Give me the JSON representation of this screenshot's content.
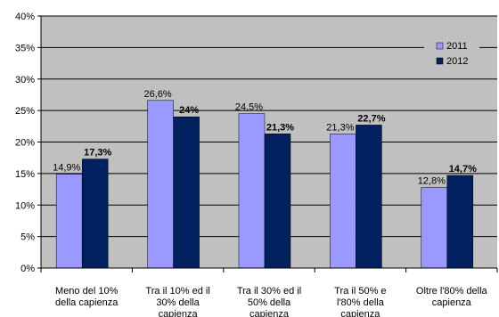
{
  "chart_data": {
    "type": "bar",
    "categories": [
      [
        "Meno del 10%",
        "della capienza"
      ],
      [
        "Tra il 10% ed il",
        "30% della",
        "capienza"
      ],
      [
        "Tra il 30% ed il",
        "50% della",
        "capienza"
      ],
      [
        "Tra il 50% e",
        "l'80% della",
        "capienza"
      ],
      [
        "Oltre l'80% della",
        "capienza"
      ]
    ],
    "series": [
      {
        "name": "2011",
        "color": "#9999ff",
        "values": [
          14.9,
          26.6,
          24.5,
          21.3,
          12.8
        ],
        "labels": [
          "14,9%",
          "26,6%",
          "24,5%",
          "21,3%",
          "12,8%"
        ],
        "label_bold": false
      },
      {
        "name": "2012",
        "color": "#002060",
        "values": [
          17.3,
          24,
          21.3,
          22.7,
          14.7
        ],
        "labels": [
          "17,3%",
          "24%",
          "21,3%",
          "22,7%",
          "14,7%"
        ],
        "label_bold": true
      }
    ],
    "yticks": [
      0,
      5,
      10,
      15,
      20,
      25,
      30,
      35,
      40
    ],
    "ytick_labels": [
      "0%",
      "5%",
      "10%",
      "15%",
      "20%",
      "25%",
      "30%",
      "35%",
      "40%"
    ],
    "ylim": [
      0,
      40
    ],
    "grid": true,
    "plot_background": "#c0c0c0",
    "legend_position": "top-right"
  }
}
